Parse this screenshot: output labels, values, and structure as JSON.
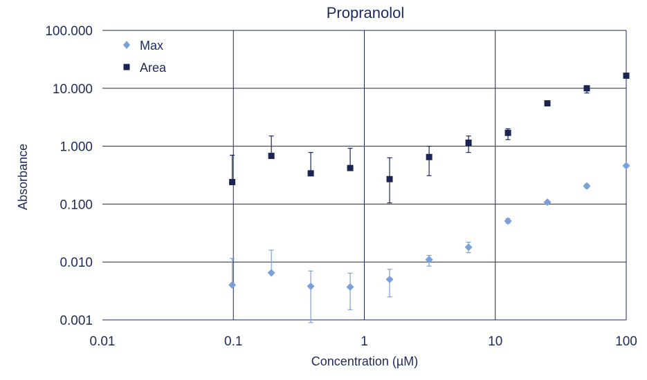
{
  "chart_data": {
    "type": "scatter",
    "title": "Propranolol",
    "xlabel": "Concentration (µM)",
    "ylabel": "Absorbance",
    "xscale": "log",
    "yscale": "log",
    "xlim": [
      0.01,
      100
    ],
    "ylim": [
      0.001,
      100
    ],
    "xticks": [
      "0.01",
      "0.1",
      "1",
      "10",
      "100"
    ],
    "yticks": [
      "0.001",
      "0.010",
      "0.100",
      "1.000",
      "10.000",
      "100.000"
    ],
    "grid": true,
    "legend_position": "top-left",
    "colors": {
      "max": "#7b9fd8",
      "area": "#1b2554",
      "grid": "#1b2554",
      "text": "#1d2a5a"
    },
    "series": [
      {
        "name": "Max",
        "marker": "diamond",
        "points": [
          {
            "x": 0.098,
            "y": 0.004,
            "err_lo": 0.004,
            "err_hi": 0.0115
          },
          {
            "x": 0.195,
            "y": 0.0065,
            "err_lo": 0.0065,
            "err_hi": 0.016
          },
          {
            "x": 0.39,
            "y": 0.0038,
            "err_lo": 0.0009,
            "err_hi": 0.007
          },
          {
            "x": 0.78,
            "y": 0.0037,
            "err_lo": 0.0015,
            "err_hi": 0.0064
          },
          {
            "x": 1.56,
            "y": 0.005,
            "err_lo": 0.0025,
            "err_hi": 0.0075
          },
          {
            "x": 3.125,
            "y": 0.011,
            "err_lo": 0.0085,
            "err_hi": 0.013
          },
          {
            "x": 6.25,
            "y": 0.018,
            "err_lo": 0.0145,
            "err_hi": 0.022
          },
          {
            "x": 12.5,
            "y": 0.051,
            "err_lo": 0.047,
            "err_hi": 0.056
          },
          {
            "x": 25,
            "y": 0.108,
            "err_lo": 0.104,
            "err_hi": 0.112
          },
          {
            "x": 50,
            "y": 0.205,
            "err_lo": 0.19,
            "err_hi": 0.22
          },
          {
            "x": 100,
            "y": 0.46,
            "err_lo": 0.45,
            "err_hi": 0.47
          }
        ]
      },
      {
        "name": "Area",
        "marker": "square",
        "points": [
          {
            "x": 0.098,
            "y": 0.24,
            "err_lo": 0.24,
            "err_hi": 0.7
          },
          {
            "x": 0.195,
            "y": 0.68,
            "err_lo": 0.68,
            "err_hi": 1.5
          },
          {
            "x": 0.39,
            "y": 0.34,
            "err_lo": 0.34,
            "err_hi": 0.78
          },
          {
            "x": 0.78,
            "y": 0.42,
            "err_lo": 0.42,
            "err_hi": 0.92
          },
          {
            "x": 1.56,
            "y": 0.27,
            "err_lo": 0.105,
            "err_hi": 0.63
          },
          {
            "x": 3.125,
            "y": 0.65,
            "err_lo": 0.31,
            "err_hi": 1.0
          },
          {
            "x": 6.25,
            "y": 1.15,
            "err_lo": 0.78,
            "err_hi": 1.5
          },
          {
            "x": 12.5,
            "y": 1.7,
            "err_lo": 1.3,
            "err_hi": 2.0
          },
          {
            "x": 25,
            "y": 5.5,
            "err_lo": 5.0,
            "err_hi": 5.8
          },
          {
            "x": 50,
            "y": 10.0,
            "err_lo": 8.3,
            "err_hi": 11.0
          },
          {
            "x": 100,
            "y": 16.5,
            "err_lo": 16.0,
            "err_hi": 17.0
          }
        ]
      }
    ]
  }
}
